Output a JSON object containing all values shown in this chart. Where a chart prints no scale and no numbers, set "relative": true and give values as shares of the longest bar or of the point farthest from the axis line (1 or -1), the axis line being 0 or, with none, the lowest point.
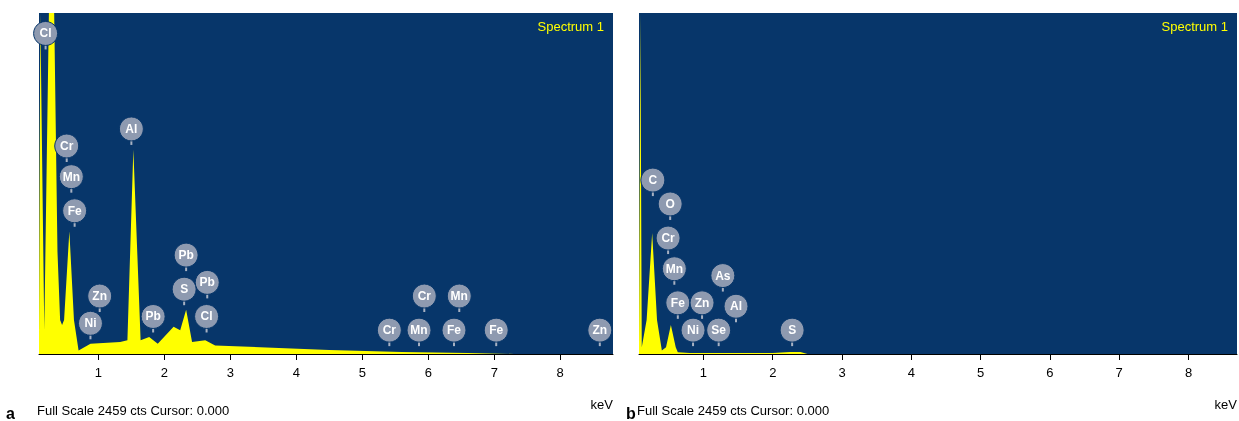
{
  "chart_data": [
    {
      "type": "area",
      "title": "Spectrum 1",
      "xlabel": "keV",
      "relative": true,
      "xlim": [
        0.1,
        8.8
      ],
      "xticks": [
        1,
        2,
        3,
        4,
        5,
        6,
        7,
        8
      ],
      "annotations": [
        "a",
        "Full Scale 2459 cts Cursor: 0.000",
        {
          "text": "Cl",
          "x": 0.2,
          "y": 0.94
        },
        {
          "text": "Cr",
          "x": 0.52,
          "y": 0.61
        },
        {
          "text": "Mn",
          "x": 0.59,
          "y": 0.52
        },
        {
          "text": "Fe",
          "x": 0.64,
          "y": 0.42
        },
        {
          "text": "Zn",
          "x": 1.02,
          "y": 0.17
        },
        {
          "text": "Ni",
          "x": 0.88,
          "y": 0.09
        },
        {
          "text": "Al",
          "x": 1.5,
          "y": 0.66
        },
        {
          "text": "Pb",
          "x": 1.83,
          "y": 0.11
        },
        {
          "text": "Pb",
          "x": 2.33,
          "y": 0.29
        },
        {
          "text": "S",
          "x": 2.3,
          "y": 0.19
        },
        {
          "text": "Pb",
          "x": 2.65,
          "y": 0.21
        },
        {
          "text": "Cl",
          "x": 2.64,
          "y": 0.11
        },
        {
          "text": "Cr",
          "x": 5.41,
          "y": 0.07
        },
        {
          "text": "Cr",
          "x": 5.94,
          "y": 0.17
        },
        {
          "text": "Mn",
          "x": 5.86,
          "y": 0.07
        },
        {
          "text": "Mn",
          "x": 6.47,
          "y": 0.17
        },
        {
          "text": "Fe",
          "x": 6.39,
          "y": 0.07
        },
        {
          "text": "Fe",
          "x": 7.03,
          "y": 0.07
        },
        {
          "text": "Zn",
          "x": 8.6,
          "y": 0.07
        }
      ],
      "series": [
        {
          "color": "#ffff00",
          "x": [
            0.1,
            0.12,
            0.18,
            0.25,
            0.33,
            0.38,
            0.42,
            0.45,
            0.48,
            0.56,
            0.63,
            0.7,
            0.88,
            1.33,
            1.44,
            1.53,
            1.64,
            1.77,
            1.9,
            2.14,
            2.24,
            2.33,
            2.42,
            2.62,
            2.77,
            3.45,
            4.5,
            5.6,
            6.6,
            7.3,
            8.6,
            8.8
          ],
          "values": [
            0.05,
            1,
            0.07,
            1,
            1,
            0.3,
            0.1,
            0.085,
            0.1,
            0.36,
            0.1,
            0.01,
            0.03,
            0.035,
            0.04,
            0.6,
            0.04,
            0.05,
            0.03,
            0.08,
            0.07,
            0.13,
            0.035,
            0.04,
            0.025,
            0.02,
            0.012,
            0.006,
            0.003,
            0,
            0,
            0
          ]
        }
      ]
    },
    {
      "type": "area",
      "title": "Spectrum 1",
      "xlabel": "keV",
      "relative": true,
      "xlim": [
        0.07,
        8.7
      ],
      "xticks": [
        1,
        2,
        3,
        4,
        5,
        6,
        7,
        8
      ],
      "annotations": [
        "b",
        "Full Scale 2459 cts Cursor: 0.000",
        {
          "text": "C",
          "x": 0.27,
          "y": 0.51
        },
        {
          "text": "O",
          "x": 0.52,
          "y": 0.44
        },
        {
          "text": "Cr",
          "x": 0.49,
          "y": 0.34
        },
        {
          "text": "Mn",
          "x": 0.58,
          "y": 0.25
        },
        {
          "text": "Fe",
          "x": 0.63,
          "y": 0.15
        },
        {
          "text": "Zn",
          "x": 0.98,
          "y": 0.15
        },
        {
          "text": "Ni",
          "x": 0.85,
          "y": 0.07
        },
        {
          "text": "Se",
          "x": 1.22,
          "y": 0.07
        },
        {
          "text": "As",
          "x": 1.28,
          "y": 0.23
        },
        {
          "text": "Al",
          "x": 1.47,
          "y": 0.14
        },
        {
          "text": "S",
          "x": 2.28,
          "y": 0.07
        }
      ],
      "series": [
        {
          "color": "#ffff00",
          "x": [
            0.07,
            0.09,
            0.11,
            0.18,
            0.26,
            0.33,
            0.4,
            0.46,
            0.53,
            0.6,
            0.63,
            0.8,
            2.0,
            2.25,
            2.4,
            2.5,
            8.7
          ],
          "values": [
            0.02,
            1,
            0.02,
            0.1,
            0.355,
            0.1,
            0.01,
            0.02,
            0.085,
            0.02,
            0.005,
            0.003,
            0.003,
            0.006,
            0.006,
            0,
            0
          ]
        }
      ]
    }
  ]
}
